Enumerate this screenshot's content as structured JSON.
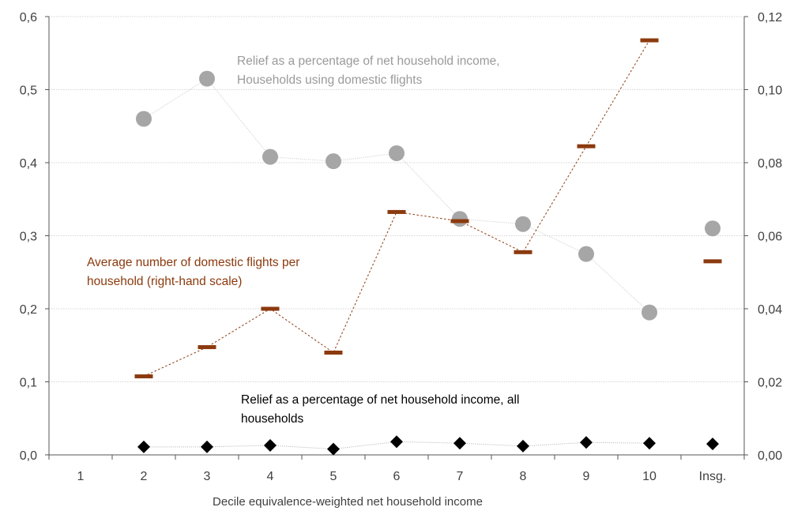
{
  "chart_data": {
    "type": "line",
    "xlabel": "Decile equivalence-weighted net household income",
    "categories": [
      "1",
      "2",
      "3",
      "4",
      "5",
      "6",
      "7",
      "8",
      "9",
      "10",
      "Insg."
    ],
    "y_left": {
      "range": [
        0,
        0.6
      ],
      "ticks": [
        "0,0",
        "0,1",
        "0,2",
        "0,3",
        "0,4",
        "0,5",
        "0,6"
      ]
    },
    "y_right": {
      "range": [
        0,
        0.12
      ],
      "ticks": [
        "0,00",
        "0,02",
        "0,04",
        "0,06",
        "0,08",
        "0,10",
        "0,12"
      ]
    },
    "grid": "horizontal",
    "series": [
      {
        "key": "relief_flight_households",
        "axis": "left",
        "marker": "circle",
        "color": "#a6a6a6",
        "line_color": "#c8c8c8",
        "values": [
          null,
          0.46,
          0.515,
          0.408,
          0.402,
          0.413,
          0.323,
          0.316,
          0.275,
          0.195,
          0.31
        ],
        "connect_last": false
      },
      {
        "key": "avg_domestic_flights",
        "axis": "right",
        "marker": "dash",
        "color": "#8b3a0e",
        "values": [
          null,
          0.0215,
          0.0295,
          0.04,
          0.028,
          0.0665,
          0.064,
          0.0555,
          0.0845,
          0.1135,
          0.053
        ],
        "connect_last": false
      },
      {
        "key": "relief_all_households",
        "axis": "left",
        "marker": "diamond",
        "color": "#000000",
        "line_color": "#b0b0b0",
        "values": [
          null,
          0.011,
          0.011,
          0.013,
          0.008,
          0.018,
          0.016,
          0.012,
          0.017,
          0.016,
          0.015
        ],
        "connect_last": false
      }
    ],
    "annotations": {
      "relief_flight_households": [
        "Relief as a percentage of net household income,",
        "Households using domestic flights"
      ],
      "avg_domestic_flights": [
        "Average number of domestic flights per",
        "household (right-hand scale)"
      ],
      "relief_all_households": [
        "Relief as a percentage of net household income, all",
        "households"
      ]
    }
  }
}
